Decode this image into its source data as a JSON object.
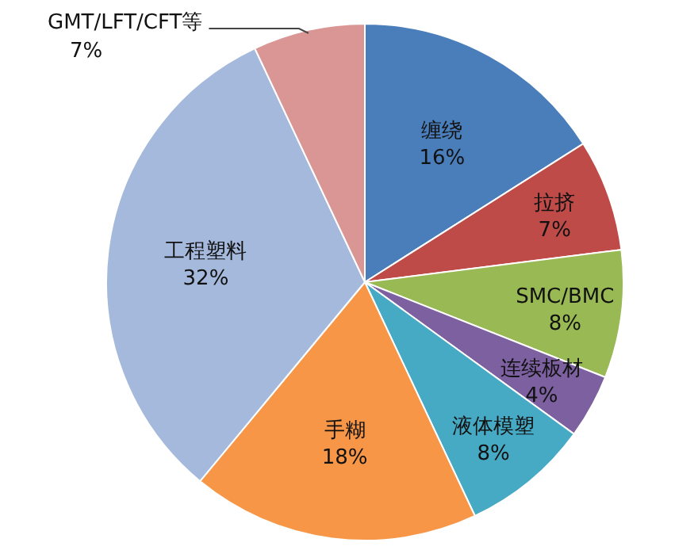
{
  "chart_data": {
    "type": "pie",
    "categories": [
      "缠绕",
      "拉挤",
      "SMC/BMC",
      "连续板材",
      "液体模塑",
      "手糊",
      "工程塑料",
      "GMT/LFT/CFT等"
    ],
    "values": [
      16,
      7,
      8,
      4,
      8,
      18,
      32,
      7
    ],
    "value_labels": [
      "16%",
      "7%",
      "8%",
      "4%",
      "8%",
      "18%",
      "32%",
      "7%"
    ],
    "colors": [
      "#4a7ebb",
      "#be4b48",
      "#98b954",
      "#7d60a0",
      "#46aac5",
      "#f79646",
      "#a5b9dc",
      "#d99694"
    ]
  }
}
